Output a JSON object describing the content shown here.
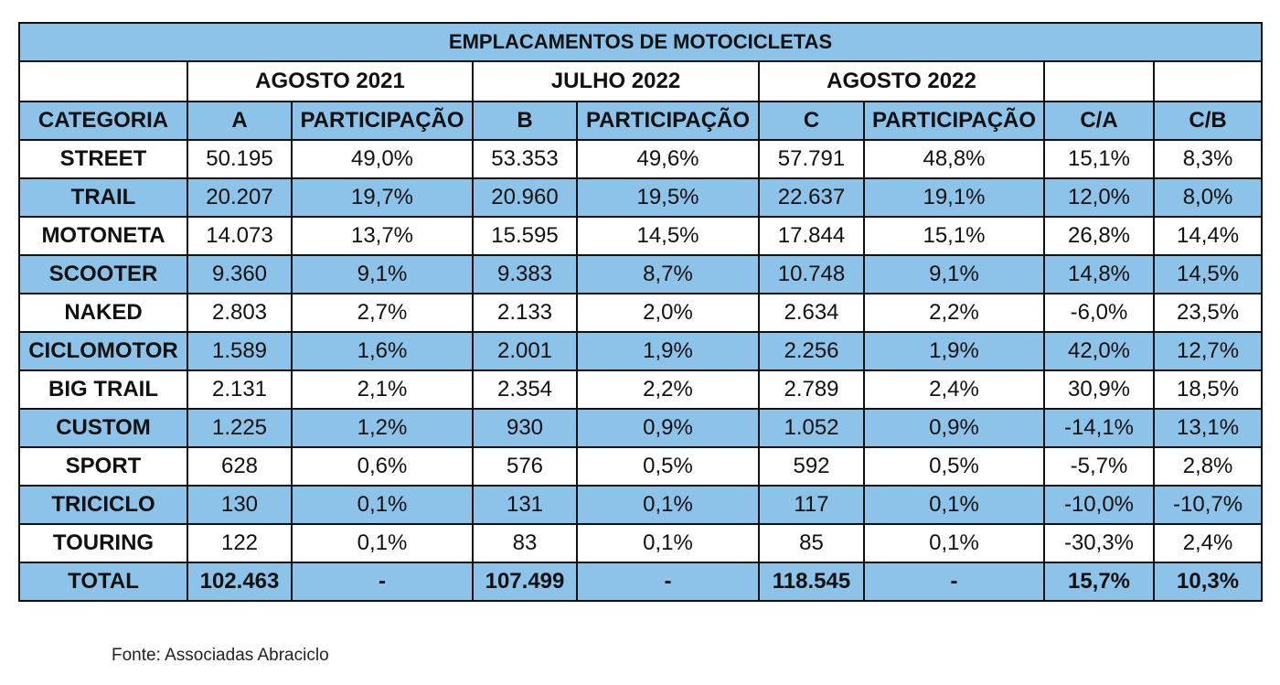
{
  "title": "EMPLACAMENTOS DE MOTOCICLETAS",
  "periods": [
    "AGOSTO 2021",
    "JULHO 2022",
    "AGOSTO 2022"
  ],
  "columns": [
    "CATEGORIA",
    "A",
    "PARTICIPAÇÃO",
    "B",
    "PARTICIPAÇÃO",
    "C",
    "PARTICIPAÇÃO",
    "C/A",
    "C/B"
  ],
  "rows": [
    [
      "STREET",
      "50.195",
      "49,0%",
      "53.353",
      "49,6%",
      "57.791",
      "48,8%",
      "15,1%",
      "8,3%"
    ],
    [
      "TRAIL",
      "20.207",
      "19,7%",
      "20.960",
      "19,5%",
      "22.637",
      "19,1%",
      "12,0%",
      "8,0%"
    ],
    [
      "MOTONETA",
      "14.073",
      "13,7%",
      "15.595",
      "14,5%",
      "17.844",
      "15,1%",
      "26,8%",
      "14,4%"
    ],
    [
      "SCOOTER",
      "9.360",
      "9,1%",
      "9.383",
      "8,7%",
      "10.748",
      "9,1%",
      "14,8%",
      "14,5%"
    ],
    [
      "NAKED",
      "2.803",
      "2,7%",
      "2.133",
      "2,0%",
      "2.634",
      "2,2%",
      "-6,0%",
      "23,5%"
    ],
    [
      "CICLOMOTOR",
      "1.589",
      "1,6%",
      "2.001",
      "1,9%",
      "2.256",
      "1,9%",
      "42,0%",
      "12,7%"
    ],
    [
      "BIG TRAIL",
      "2.131",
      "2,1%",
      "2.354",
      "2,2%",
      "2.789",
      "2,4%",
      "30,9%",
      "18,5%"
    ],
    [
      "CUSTOM",
      "1.225",
      "1,2%",
      "930",
      "0,9%",
      "1.052",
      "0,9%",
      "-14,1%",
      "13,1%"
    ],
    [
      "SPORT",
      "628",
      "0,6%",
      "576",
      "0,5%",
      "592",
      "0,5%",
      "-5,7%",
      "2,8%"
    ],
    [
      "TRICICLO",
      "130",
      "0,1%",
      "131",
      "0,1%",
      "117",
      "0,1%",
      "-10,0%",
      "-10,7%"
    ],
    [
      "TOURING",
      "122",
      "0,1%",
      "83",
      "0,1%",
      "85",
      "0,1%",
      "-30,3%",
      "2,4%"
    ]
  ],
  "total": [
    "TOTAL",
    "102.463",
    "-",
    "107.499",
    "-",
    "118.545",
    "-",
    "15,7%",
    "10,3%"
  ],
  "source": "Fonte: Associadas Abraciclo",
  "colors": {
    "header_blue": "#8dc3e8",
    "border": "#111111"
  }
}
